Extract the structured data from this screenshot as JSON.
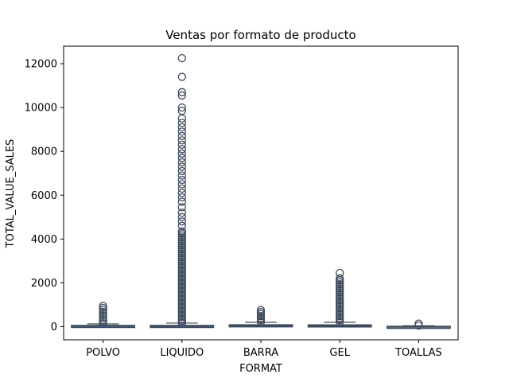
{
  "chart_data": {
    "type": "box",
    "title": "Ventas por formato de producto",
    "xlabel": "FORMAT",
    "ylabel": "TOTAL_VALUE_SALES",
    "ylim": [
      -600,
      12800
    ],
    "yticks": [
      0,
      2000,
      4000,
      6000,
      8000,
      10000,
      12000
    ],
    "categories": [
      "POLVO",
      "LIQUIDO",
      "BARRA",
      "GEL",
      "TOALLAS"
    ],
    "boxes": [
      {
        "category": "POLVO",
        "min": 0,
        "q1": 15,
        "median": 35,
        "q3": 55,
        "max": 125,
        "outlier_range": [
          130,
          1000
        ],
        "outliers": []
      },
      {
        "category": "LIQUIDO",
        "min": 0,
        "q1": 12,
        "median": 30,
        "q3": 55,
        "max": 165,
        "outlier_range": [
          170,
          4400
        ],
        "outliers": [
          4600,
          4800,
          5000,
          5200,
          5450,
          5700,
          5900,
          6100,
          6300,
          6500,
          6700,
          6900,
          7100,
          7300,
          7500,
          7700,
          7900,
          8100,
          8300,
          8500,
          8700,
          8900,
          9100,
          9300,
          9500,
          9850,
          10000,
          10550,
          10700,
          11400,
          12250
        ]
      },
      {
        "category": "BARRA",
        "min": 0,
        "q1": 20,
        "median": 50,
        "q3": 85,
        "max": 200,
        "outlier_range": [
          210,
          820
        ],
        "outliers": []
      },
      {
        "category": "GEL",
        "min": 0,
        "q1": 15,
        "median": 45,
        "q3": 80,
        "max": 200,
        "outlier_range": [
          210,
          2250
        ],
        "outliers": [
          2450
        ]
      },
      {
        "category": "TOALLAS",
        "min": 0,
        "q1": 3,
        "median": 8,
        "q3": 15,
        "max": 40,
        "outlier_range": [
          50,
          170
        ],
        "outliers": []
      }
    ],
    "box_color": "#3d4a5c",
    "grid": false,
    "legend": "none"
  }
}
